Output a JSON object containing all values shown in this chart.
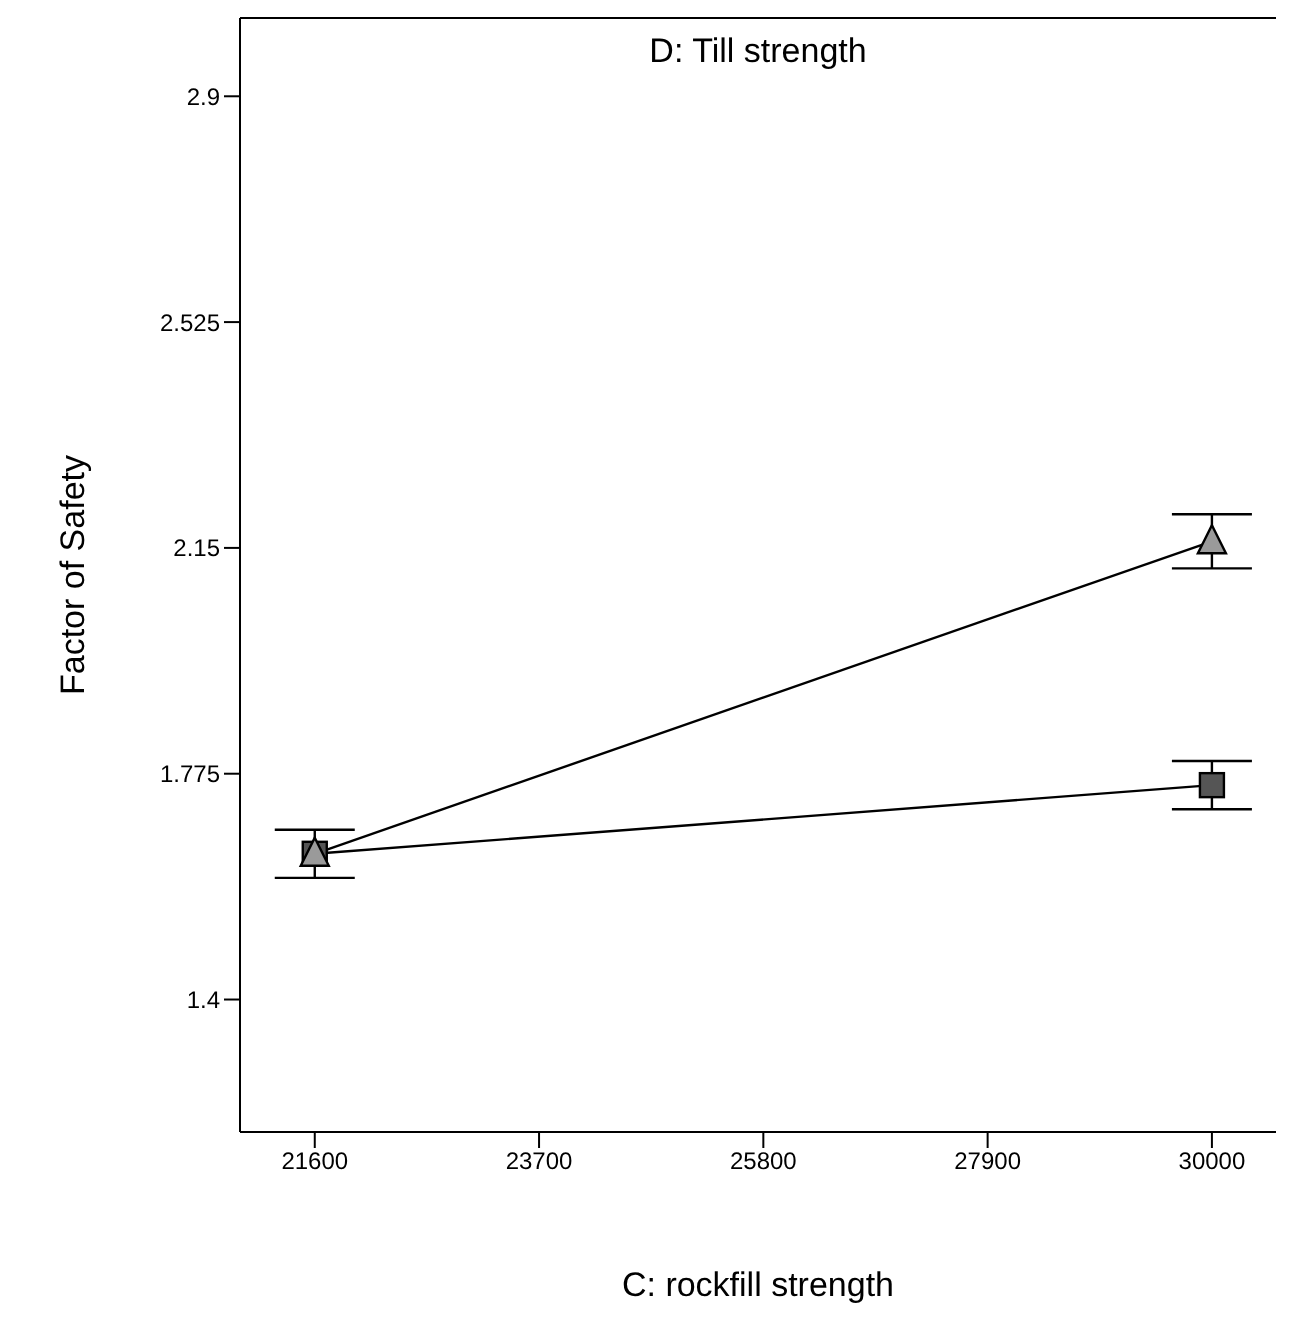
{
  "chart_data": {
    "type": "line",
    "title": "D: Till strength",
    "xlabel": "C: rockfill strength",
    "ylabel": "Factor of Safety",
    "x": [
      21600,
      30000
    ],
    "series": [
      {
        "color": "#000000",
        "marker": "square",
        "values": [
          1.642,
          1.756
        ],
        "errors": [
          null,
          0.04
        ]
      },
      {
        "color": "#000000",
        "marker": "triangle",
        "values": [
          1.642,
          2.161
        ],
        "errors": [
          0.04,
          0.045
        ]
      }
    ],
    "xlim": [
      20900,
      30600
    ],
    "xticks": [
      21600,
      23700,
      25800,
      27900,
      30000
    ],
    "ylim": [
      1.18,
      3.03
    ],
    "yticks": [
      1.4,
      1.775,
      2.15,
      2.525,
      2.9
    ],
    "grid": false,
    "legend": false
  }
}
